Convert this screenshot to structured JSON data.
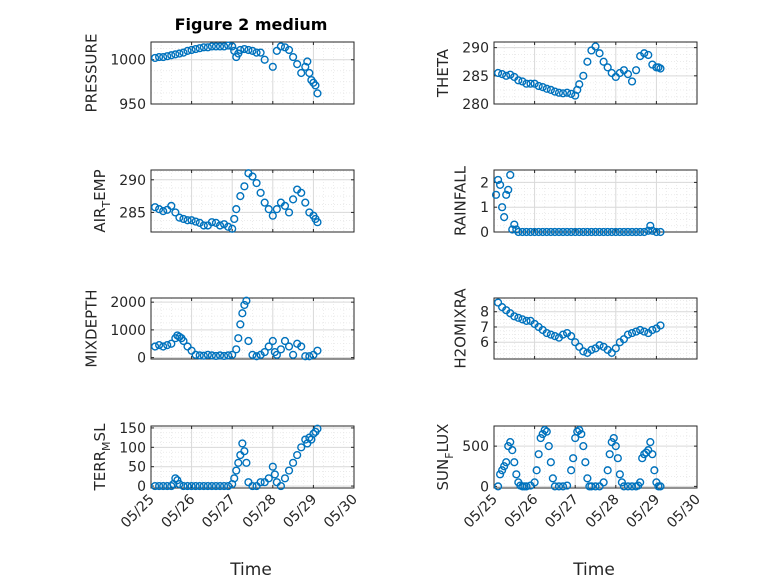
{
  "figure": {
    "title": "Figure 2 medium",
    "xlabel": "Time"
  },
  "style": {
    "marker_color": "#0072BD",
    "axis_color": "#262626",
    "grid_color": "#dfdfdf"
  },
  "chart_data": [
    {
      "type": "scatter",
      "ylabel": "PRESSURE",
      "ylabel_sub": null,
      "ylim": [
        950,
        1020
      ],
      "yticks": [
        950,
        1000
      ],
      "xlim": [
        0,
        5
      ],
      "xticks": [
        0,
        1,
        2,
        3,
        4,
        5
      ],
      "xticklabels": [
        "05/25",
        "05/26",
        "05/27",
        "05/28",
        "05/29",
        "05/30"
      ],
      "grid": true,
      "minor_grid": true,
      "x": [
        0.1,
        0.2,
        0.3,
        0.4,
        0.5,
        0.6,
        0.7,
        0.8,
        0.9,
        1.0,
        1.1,
        1.2,
        1.3,
        1.4,
        1.5,
        1.6,
        1.7,
        1.8,
        1.9,
        2.0,
        2.05,
        2.1,
        2.15,
        2.2,
        2.3,
        2.4,
        2.5,
        2.6,
        2.7,
        2.8,
        3.0,
        3.1,
        3.2,
        3.3,
        3.4,
        3.5,
        3.6,
        3.7,
        3.8,
        3.85,
        3.9,
        3.95,
        4.0,
        4.05,
        4.1
      ],
      "y": [
        1002,
        1003,
        1003,
        1004,
        1005,
        1006,
        1007,
        1008,
        1010,
        1011,
        1012,
        1013,
        1014,
        1014,
        1015,
        1015,
        1015,
        1015,
        1016,
        1015,
        1010,
        1003,
        1007,
        1011,
        1012,
        1011,
        1010,
        1008,
        1008,
        1000,
        992,
        1010,
        1015,
        1014,
        1011,
        1003,
        995,
        985,
        992,
        998,
        985,
        977,
        974,
        971,
        962
      ]
    },
    {
      "type": "scatter",
      "ylabel": "THETA",
      "ylabel_sub": null,
      "ylim": [
        280,
        291
      ],
      "yticks": [
        280,
        285,
        290
      ],
      "xlim": [
        0,
        5
      ],
      "xticks": [
        0,
        1,
        2,
        3,
        4,
        5
      ],
      "xticklabels": [
        "05/25",
        "05/26",
        "05/27",
        "05/28",
        "05/29",
        "05/30"
      ],
      "grid": true,
      "minor_grid": true,
      "x": [
        0.1,
        0.2,
        0.3,
        0.4,
        0.5,
        0.6,
        0.7,
        0.8,
        0.9,
        1.0,
        1.1,
        1.2,
        1.3,
        1.4,
        1.5,
        1.6,
        1.7,
        1.8,
        1.9,
        2.0,
        2.05,
        2.1,
        2.2,
        2.3,
        2.4,
        2.5,
        2.6,
        2.7,
        2.8,
        2.9,
        3.0,
        3.1,
        3.2,
        3.3,
        3.4,
        3.5,
        3.6,
        3.7,
        3.8,
        3.9,
        4.0,
        4.05,
        4.1
      ],
      "y": [
        285.5,
        285.3,
        285.0,
        285.2,
        284.8,
        284.2,
        284.0,
        283.6,
        283.6,
        283.6,
        283.2,
        283.0,
        282.7,
        282.5,
        282.2,
        282.0,
        281.9,
        282.0,
        281.8,
        281.5,
        282.5,
        283.5,
        285.0,
        287.5,
        289.5,
        290.2,
        289.0,
        287.5,
        286.5,
        285.5,
        284.8,
        285.5,
        286.0,
        285.3,
        284.0,
        286.0,
        288.5,
        289.0,
        288.7,
        287.0,
        286.5,
        286.5,
        286.3
      ]
    },
    {
      "type": "scatter",
      "ylabel": "AIR",
      "ylabel_sub": "T",
      "ylabel_rest": "EMP",
      "ylim": [
        282,
        291.5
      ],
      "yticks": [
        285,
        290
      ],
      "xlim": [
        0,
        5
      ],
      "xticks": [
        0,
        1,
        2,
        3,
        4,
        5
      ],
      "xticklabels": [
        "05/25",
        "05/26",
        "05/27",
        "05/28",
        "05/29",
        "05/30"
      ],
      "grid": true,
      "minor_grid": true,
      "x": [
        0.1,
        0.2,
        0.3,
        0.4,
        0.5,
        0.6,
        0.7,
        0.8,
        0.9,
        1.0,
        1.1,
        1.2,
        1.3,
        1.4,
        1.5,
        1.6,
        1.7,
        1.8,
        1.9,
        2.0,
        2.05,
        2.1,
        2.2,
        2.3,
        2.4,
        2.5,
        2.6,
        2.7,
        2.8,
        2.9,
        3.0,
        3.1,
        3.2,
        3.3,
        3.4,
        3.5,
        3.6,
        3.7,
        3.8,
        3.9,
        4.0,
        4.05,
        4.1
      ],
      "y": [
        285.8,
        285.5,
        285.2,
        285.4,
        286.0,
        285.0,
        284.2,
        284.0,
        283.8,
        283.8,
        283.6,
        283.4,
        283.0,
        283.0,
        283.5,
        283.4,
        283.0,
        283.2,
        282.8,
        282.5,
        284.0,
        285.5,
        287.5,
        289.0,
        291.0,
        290.5,
        289.5,
        288.0,
        286.5,
        285.5,
        284.5,
        285.5,
        286.5,
        286.0,
        285.0,
        287.0,
        288.5,
        288.0,
        286.5,
        285.0,
        284.5,
        284.0,
        283.5
      ]
    },
    {
      "type": "scatter",
      "ylabel": "RAINFALL",
      "ylabel_sub": null,
      "ylim": [
        0,
        2.5
      ],
      "yticks": [
        0,
        1,
        2
      ],
      "xlim": [
        0,
        5
      ],
      "xticks": [
        0,
        1,
        2,
        3,
        4,
        5
      ],
      "xticklabels": [
        "05/25",
        "05/26",
        "05/27",
        "05/28",
        "05/29",
        "05/30"
      ],
      "grid": true,
      "minor_grid": true,
      "x": [
        0.05,
        0.1,
        0.15,
        0.2,
        0.25,
        0.3,
        0.35,
        0.4,
        0.45,
        0.5,
        0.55,
        0.6,
        0.7,
        0.8,
        0.9,
        1.0,
        1.1,
        1.2,
        1.3,
        1.4,
        1.5,
        1.6,
        1.7,
        1.8,
        1.9,
        2.0,
        2.1,
        2.2,
        2.3,
        2.4,
        2.5,
        2.6,
        2.7,
        2.8,
        2.9,
        3.0,
        3.1,
        3.2,
        3.3,
        3.4,
        3.5,
        3.6,
        3.7,
        3.8,
        3.85,
        3.9,
        4.0,
        4.1
      ],
      "y": [
        1.5,
        2.1,
        1.9,
        1.0,
        0.6,
        1.5,
        1.7,
        2.3,
        0.1,
        0.3,
        0.1,
        0,
        0,
        0,
        0,
        0,
        0,
        0,
        0,
        0,
        0,
        0,
        0,
        0,
        0,
        0,
        0,
        0,
        0,
        0,
        0,
        0,
        0,
        0,
        0,
        0,
        0,
        0,
        0,
        0,
        0,
        0,
        0,
        0.05,
        0.25,
        0.05,
        0,
        0
      ]
    },
    {
      "type": "scatter",
      "ylabel": "MIXDEPTH",
      "ylabel_sub": null,
      "ylim": [
        -50,
        2150
      ],
      "yticks": [
        0,
        1000,
        2000
      ],
      "xlim": [
        0,
        5
      ],
      "xticks": [
        0,
        1,
        2,
        3,
        4,
        5
      ],
      "xticklabels": [
        "05/25",
        "05/26",
        "05/27",
        "05/28",
        "05/29",
        "05/30"
      ],
      "grid": true,
      "minor_grid": true,
      "x": [
        0.1,
        0.2,
        0.3,
        0.4,
        0.5,
        0.6,
        0.65,
        0.7,
        0.75,
        0.8,
        0.9,
        1.0,
        1.1,
        1.2,
        1.3,
        1.4,
        1.5,
        1.6,
        1.7,
        1.8,
        1.9,
        2.0,
        2.1,
        2.15,
        2.2,
        2.25,
        2.3,
        2.35,
        2.4,
        2.5,
        2.6,
        2.7,
        2.8,
        2.9,
        3.0,
        3.05,
        3.1,
        3.2,
        3.3,
        3.4,
        3.5,
        3.6,
        3.7,
        3.8,
        3.9,
        4.0,
        4.1
      ],
      "y": [
        400,
        450,
        400,
        450,
        500,
        700,
        800,
        750,
        700,
        600,
        400,
        250,
        100,
        80,
        70,
        100,
        80,
        60,
        80,
        60,
        80,
        100,
        300,
        700,
        1200,
        1600,
        1900,
        2050,
        600,
        100,
        50,
        100,
        200,
        400,
        600,
        200,
        100,
        300,
        600,
        400,
        100,
        500,
        400,
        50,
        50,
        100,
        250
      ]
    },
    {
      "type": "scatter",
      "ylabel": "H2OMIXRA",
      "ylabel_sub": null,
      "ylim": [
        4.9,
        8.9
      ],
      "yticks": [
        6,
        7,
        8
      ],
      "xlim": [
        0,
        5
      ],
      "xticks": [
        0,
        1,
        2,
        3,
        4,
        5
      ],
      "xticklabels": [
        "05/25",
        "05/26",
        "05/27",
        "05/28",
        "05/29",
        "05/30"
      ],
      "grid": true,
      "minor_grid": true,
      "x": [
        0.1,
        0.2,
        0.3,
        0.4,
        0.5,
        0.6,
        0.7,
        0.8,
        0.9,
        1.0,
        1.1,
        1.2,
        1.3,
        1.4,
        1.5,
        1.6,
        1.7,
        1.8,
        1.9,
        2.0,
        2.1,
        2.2,
        2.3,
        2.4,
        2.5,
        2.6,
        2.7,
        2.8,
        2.9,
        3.0,
        3.1,
        3.2,
        3.3,
        3.4,
        3.5,
        3.6,
        3.7,
        3.8,
        3.9,
        4.0,
        4.1
      ],
      "y": [
        8.6,
        8.3,
        8.1,
        7.9,
        7.7,
        7.6,
        7.5,
        7.4,
        7.4,
        7.2,
        7.0,
        6.8,
        6.6,
        6.5,
        6.4,
        6.3,
        6.5,
        6.6,
        6.4,
        6.0,
        5.7,
        5.4,
        5.3,
        5.5,
        5.6,
        5.8,
        5.7,
        5.5,
        5.3,
        5.6,
        6.0,
        6.2,
        6.5,
        6.6,
        6.7,
        6.8,
        6.7,
        6.6,
        6.8,
        6.9,
        7.1
      ]
    },
    {
      "type": "scatter",
      "ylabel": "TERR",
      "ylabel_sub": "M",
      "ylabel_rest": "SL",
      "ylim": [
        -5,
        155
      ],
      "yticks": [
        0,
        50,
        100,
        150
      ],
      "xlim": [
        0,
        5
      ],
      "xticks": [
        0,
        1,
        2,
        3,
        4,
        5
      ],
      "xticklabels": [
        "05/25",
        "05/26",
        "05/27",
        "05/28",
        "05/29",
        "05/30"
      ],
      "grid": true,
      "minor_grid": true,
      "x": [
        0.1,
        0.2,
        0.3,
        0.4,
        0.5,
        0.55,
        0.6,
        0.65,
        0.7,
        0.8,
        0.9,
        1.0,
        1.1,
        1.2,
        1.3,
        1.4,
        1.5,
        1.6,
        1.7,
        1.8,
        1.9,
        2.0,
        2.05,
        2.1,
        2.15,
        2.2,
        2.25,
        2.3,
        2.35,
        2.4,
        2.5,
        2.6,
        2.7,
        2.8,
        2.9,
        3.0,
        3.05,
        3.1,
        3.2,
        3.3,
        3.4,
        3.5,
        3.6,
        3.7,
        3.8,
        3.85,
        3.9,
        3.95,
        4.0,
        4.05,
        4.1
      ],
      "y": [
        0,
        0,
        0,
        0,
        0,
        5,
        20,
        15,
        5,
        0,
        0,
        0,
        0,
        0,
        0,
        0,
        0,
        0,
        0,
        0,
        0,
        5,
        20,
        40,
        60,
        80,
        110,
        90,
        60,
        10,
        0,
        0,
        10,
        10,
        20,
        50,
        30,
        10,
        0,
        20,
        40,
        60,
        80,
        100,
        120,
        110,
        125,
        120,
        135,
        140,
        148
      ]
    },
    {
      "type": "scatter",
      "ylabel": "SUN",
      "ylabel_sub": "F",
      "ylabel_rest": "LUX",
      "ylim": [
        -20,
        750
      ],
      "yticks": [
        0,
        500
      ],
      "xlim": [
        0,
        5
      ],
      "xticks": [
        0,
        1,
        2,
        3,
        4,
        5
      ],
      "xticklabels": [
        "05/25",
        "05/26",
        "05/27",
        "05/28",
        "05/29",
        "05/30"
      ],
      "grid": true,
      "minor_grid": true,
      "x": [
        0.1,
        0.15,
        0.2,
        0.25,
        0.3,
        0.35,
        0.4,
        0.45,
        0.5,
        0.55,
        0.6,
        0.65,
        0.7,
        0.75,
        0.8,
        0.9,
        1.0,
        1.05,
        1.1,
        1.15,
        1.2,
        1.25,
        1.3,
        1.35,
        1.4,
        1.45,
        1.5,
        1.6,
        1.7,
        1.8,
        1.9,
        1.95,
        2.0,
        2.05,
        2.1,
        2.15,
        2.2,
        2.25,
        2.3,
        2.35,
        2.4,
        2.5,
        2.6,
        2.7,
        2.8,
        2.85,
        2.9,
        2.95,
        3.0,
        3.05,
        3.1,
        3.15,
        3.2,
        3.3,
        3.4,
        3.5,
        3.55,
        3.6,
        3.65,
        3.7,
        3.75,
        3.8,
        3.85,
        3.9,
        3.95,
        4.0,
        4.05,
        4.1
      ],
      "y": [
        0,
        150,
        200,
        250,
        300,
        500,
        550,
        450,
        300,
        150,
        50,
        10,
        0,
        0,
        0,
        10,
        50,
        200,
        400,
        600,
        650,
        700,
        680,
        500,
        300,
        100,
        0,
        0,
        0,
        10,
        200,
        350,
        600,
        680,
        700,
        650,
        500,
        300,
        100,
        0,
        0,
        0,
        0,
        50,
        200,
        400,
        550,
        600,
        500,
        350,
        150,
        50,
        0,
        0,
        0,
        0,
        10,
        50,
        350,
        400,
        420,
        450,
        550,
        400,
        200,
        50,
        0,
        0
      ]
    }
  ]
}
